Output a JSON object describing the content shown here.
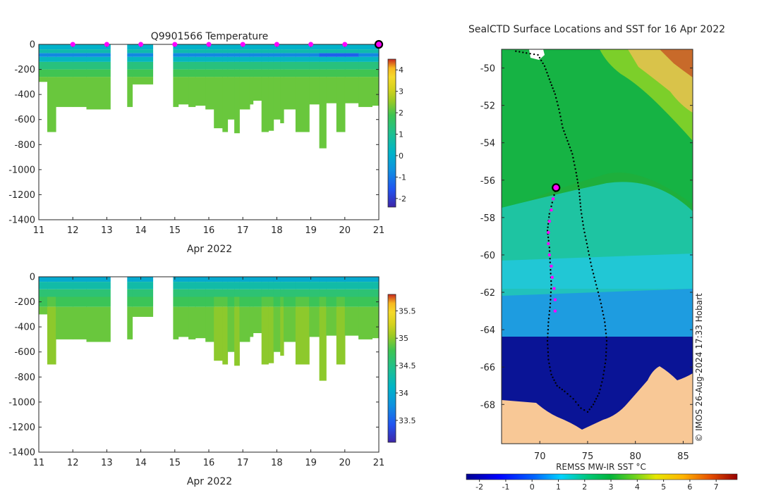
{
  "figure": {
    "copyright": "© IMOS 26-Aug-2024 17:33 Hobart"
  },
  "chart_data": [
    {
      "id": "temperature",
      "type": "heatmap",
      "title": "Q9901566  Temperature",
      "xlabel": "Apr 2022",
      "ylabel": "",
      "xlim": [
        11,
        21
      ],
      "ylim": [
        -1400,
        0
      ],
      "xticks": [
        11,
        12,
        13,
        14,
        15,
        16,
        17,
        18,
        19,
        20,
        21
      ],
      "yticks": [
        0,
        -200,
        -400,
        -600,
        -800,
        -1000,
        -1200,
        -1400
      ],
      "colorbar": {
        "range": [
          -2.4,
          4.5
        ],
        "ticks": [
          -2,
          -1,
          0,
          1,
          2,
          3,
          4
        ],
        "colormap": "parula-like"
      },
      "daily_markers": {
        "x": [
          12,
          13,
          14,
          15,
          16,
          17,
          18,
          19,
          20
        ],
        "color": "#ff00ff",
        "current": 21
      },
      "profiles": [
        {
          "t0": 11.0,
          "t1": 11.25,
          "depth": 300
        },
        {
          "t0": 11.25,
          "t1": 11.5,
          "depth": 700
        },
        {
          "t0": 11.5,
          "t1": 12.0,
          "depth": 500
        },
        {
          "t0": 12.0,
          "t1": 12.4,
          "depth": 500
        },
        {
          "t0": 12.4,
          "t1": 13.1,
          "depth": 520
        },
        {
          "t0": 13.6,
          "t1": 13.75,
          "depth": 500
        },
        {
          "t0": 13.75,
          "t1": 14.35,
          "depth": 320
        },
        {
          "t0": 14.95,
          "t1": 15.1,
          "depth": 500
        },
        {
          "t0": 15.1,
          "t1": 15.4,
          "depth": 480
        },
        {
          "t0": 15.4,
          "t1": 15.6,
          "depth": 500
        },
        {
          "t0": 15.6,
          "t1": 15.9,
          "depth": 490
        },
        {
          "t0": 15.9,
          "t1": 16.15,
          "depth": 520
        },
        {
          "t0": 16.15,
          "t1": 16.4,
          "depth": 670
        },
        {
          "t0": 16.4,
          "t1": 16.55,
          "depth": 700
        },
        {
          "t0": 16.55,
          "t1": 16.75,
          "depth": 600
        },
        {
          "t0": 16.75,
          "t1": 16.9,
          "depth": 710
        },
        {
          "t0": 16.9,
          "t1": 17.2,
          "depth": 520
        },
        {
          "t0": 17.2,
          "t1": 17.3,
          "depth": 480
        },
        {
          "t0": 17.3,
          "t1": 17.55,
          "depth": 450
        },
        {
          "t0": 17.55,
          "t1": 17.75,
          "depth": 700
        },
        {
          "t0": 17.75,
          "t1": 17.9,
          "depth": 690
        },
        {
          "t0": 17.9,
          "t1": 18.1,
          "depth": 600
        },
        {
          "t0": 18.1,
          "t1": 18.2,
          "depth": 630
        },
        {
          "t0": 18.2,
          "t1": 18.55,
          "depth": 520
        },
        {
          "t0": 18.55,
          "t1": 18.95,
          "depth": 700
        },
        {
          "t0": 18.95,
          "t1": 19.25,
          "depth": 480
        },
        {
          "t0": 19.25,
          "t1": 19.45,
          "depth": 830
        },
        {
          "t0": 19.45,
          "t1": 19.75,
          "depth": 470
        },
        {
          "t0": 19.75,
          "t1": 20.0,
          "depth": 700
        },
        {
          "t0": 20.0,
          "t1": 20.4,
          "depth": 470
        },
        {
          "t0": 20.4,
          "t1": 20.8,
          "depth": 500
        },
        {
          "t0": 20.8,
          "t1": 21.0,
          "depth": 490
        }
      ],
      "layers": [
        {
          "top": 0,
          "bottom": 40,
          "value": 0.1
        },
        {
          "top": 40,
          "bottom": 70,
          "value": 0.6
        },
        {
          "top": 70,
          "bottom": 100,
          "value": -0.8
        },
        {
          "top": 100,
          "bottom": 140,
          "value": 0.3
        },
        {
          "top": 140,
          "bottom": 200,
          "value": 1.3
        },
        {
          "top": 200,
          "bottom": 260,
          "value": 1.9
        },
        {
          "top": 260,
          "bottom": 1400,
          "value": 2.2
        }
      ]
    },
    {
      "id": "salinity",
      "type": "heatmap",
      "title": "",
      "xlabel": "Apr 2022",
      "ylabel": "",
      "xlim": [
        11,
        21
      ],
      "ylim": [
        -1400,
        0
      ],
      "xticks": [
        11,
        12,
        13,
        14,
        15,
        16,
        17,
        18,
        19,
        20,
        21
      ],
      "yticks": [
        0,
        -200,
        -400,
        -600,
        -800,
        -1000,
        -1200,
        -1400
      ],
      "colorbar": {
        "range": [
          33.1,
          35.8
        ],
        "ticks": [
          33.5,
          34,
          34.5,
          35,
          35.5
        ],
        "colormap": "parula-like"
      },
      "layers": [
        {
          "top": 0,
          "bottom": 40,
          "value": 34.0
        },
        {
          "top": 40,
          "bottom": 100,
          "value": 34.3
        },
        {
          "top": 100,
          "bottom": 160,
          "value": 34.6
        },
        {
          "top": 160,
          "bottom": 240,
          "value": 34.75
        },
        {
          "top": 240,
          "bottom": 1400,
          "value": 34.9
        }
      ]
    },
    {
      "id": "sst-map",
      "type": "heatmap",
      "title": "SealCTD Surface Locations and SST for 16 Apr 2022",
      "xlabel": "",
      "ylabel": "",
      "xlim": [
        66,
        86
      ],
      "ylim": [
        -70.1,
        -49
      ],
      "xticks": [
        70,
        75,
        80,
        85
      ],
      "yticks": [
        -50,
        -52,
        -54,
        -56,
        -58,
        -60,
        -62,
        -64,
        -66,
        -68
      ],
      "colorbar": {
        "label": "REMSS MW-IR SST °C",
        "range": [
          -2.5,
          7.8
        ],
        "ticks": [
          -2,
          -1,
          0,
          1,
          2,
          3,
          4,
          5,
          6,
          7
        ]
      },
      "land_color": "#f8c896",
      "track_color": "#000000",
      "highlight_color": "#ff00ff",
      "track": [
        [
          67.5,
          -49.1
        ],
        [
          68.6,
          -49.2
        ],
        [
          69.8,
          -49.3
        ],
        [
          70.5,
          -49.9
        ],
        [
          71.0,
          -50.6
        ],
        [
          71.6,
          -51.4
        ],
        [
          72.0,
          -52.2
        ],
        [
          72.4,
          -53.2
        ],
        [
          72.9,
          -53.9
        ],
        [
          73.4,
          -54.6
        ],
        [
          73.8,
          -55.6
        ],
        [
          74.1,
          -56.5
        ],
        [
          74.3,
          -57.6
        ],
        [
          74.6,
          -58.6
        ],
        [
          75.0,
          -59.6
        ],
        [
          75.4,
          -60.6
        ],
        [
          75.9,
          -61.6
        ],
        [
          76.4,
          -62.6
        ],
        [
          76.8,
          -63.6
        ],
        [
          77.0,
          -64.6
        ],
        [
          76.9,
          -65.6
        ],
        [
          76.6,
          -66.6
        ],
        [
          76.2,
          -67.4
        ],
        [
          75.6,
          -68.0
        ],
        [
          75.0,
          -68.4
        ],
        [
          74.3,
          -68.2
        ],
        [
          73.5,
          -67.7
        ],
        [
          72.6,
          -67.3
        ],
        [
          71.8,
          -67.0
        ],
        [
          71.2,
          -66.4
        ],
        [
          70.9,
          -65.6
        ],
        [
          70.8,
          -64.6
        ],
        [
          70.9,
          -63.6
        ],
        [
          71.1,
          -62.6
        ],
        [
          71.2,
          -61.6
        ],
        [
          71.1,
          -60.6
        ],
        [
          71.0,
          -59.6
        ],
        [
          70.8,
          -58.7
        ],
        [
          71.0,
          -57.8
        ],
        [
          71.4,
          -57.0
        ],
        [
          71.7,
          -56.4
        ]
      ],
      "highlight_track": [
        [
          71.4,
          -57.0
        ],
        [
          71.2,
          -57.6
        ],
        [
          71.0,
          -58.2
        ],
        [
          70.9,
          -58.8
        ],
        [
          70.9,
          -59.4
        ],
        [
          71.0,
          -60.0
        ],
        [
          71.2,
          -60.6
        ],
        [
          71.3,
          -61.2
        ],
        [
          71.5,
          -61.8
        ],
        [
          71.6,
          -62.4
        ],
        [
          71.6,
          -63.0
        ],
        [
          71.7,
          -63.4
        ]
      ],
      "current_position": [
        71.7,
        -56.4
      ]
    }
  ]
}
